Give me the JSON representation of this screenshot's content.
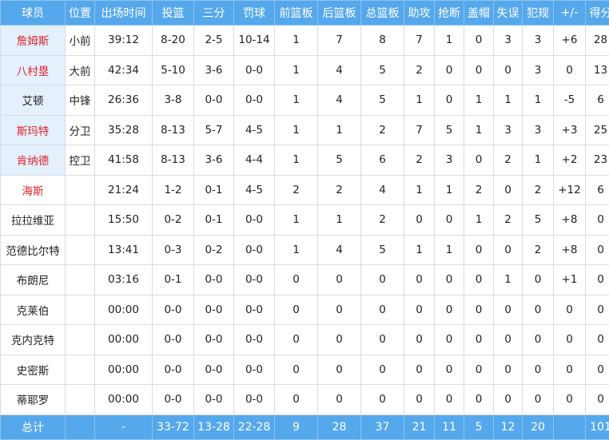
{
  "colors": {
    "header_bg": "#56a8ec",
    "starter_bg": "#e4f0fc",
    "highlight_name": "#e0242c"
  },
  "headers": [
    "球员",
    "位置",
    "出场时间",
    "投篮",
    "三分",
    "罚球",
    "前篮板",
    "后篮板",
    "总篮板",
    "助攻",
    "抢断",
    "盖帽",
    "失误",
    "犯规",
    "+/-",
    "得分"
  ],
  "players": [
    {
      "name": "詹姆斯",
      "red": true,
      "starter": true,
      "stats": [
        "小前",
        "39:12",
        "8-20",
        "2-5",
        "10-14",
        "1",
        "7",
        "8",
        "7",
        "1",
        "0",
        "3",
        "3",
        "+6",
        "28"
      ]
    },
    {
      "name": "八村塁",
      "red": true,
      "starter": true,
      "stats": [
        "大前",
        "42:34",
        "5-10",
        "3-6",
        "0-0",
        "1",
        "4",
        "5",
        "2",
        "0",
        "0",
        "0",
        "3",
        "0",
        "13"
      ]
    },
    {
      "name": "艾顿",
      "red": false,
      "starter": true,
      "stats": [
        "中锋",
        "26:36",
        "3-8",
        "0-0",
        "0-0",
        "1",
        "4",
        "5",
        "1",
        "0",
        "1",
        "1",
        "1",
        "-5",
        "6"
      ]
    },
    {
      "name": "斯玛特",
      "red": true,
      "starter": true,
      "stats": [
        "分卫",
        "35:28",
        "8-13",
        "5-7",
        "4-5",
        "1",
        "1",
        "2",
        "7",
        "5",
        "1",
        "3",
        "3",
        "+3",
        "25"
      ]
    },
    {
      "name": "肯纳德",
      "red": true,
      "starter": true,
      "stats": [
        "控卫",
        "41:58",
        "8-13",
        "3-6",
        "4-4",
        "1",
        "5",
        "6",
        "2",
        "3",
        "0",
        "2",
        "1",
        "+2",
        "23"
      ]
    },
    {
      "name": "海斯",
      "red": true,
      "starter": false,
      "stats": [
        "",
        "21:24",
        "1-2",
        "0-1",
        "4-5",
        "2",
        "2",
        "4",
        "1",
        "1",
        "2",
        "0",
        "2",
        "+12",
        "6"
      ]
    },
    {
      "name": "拉拉维亚",
      "red": false,
      "starter": false,
      "stats": [
        "",
        "15:50",
        "0-2",
        "0-1",
        "0-0",
        "1",
        "1",
        "2",
        "0",
        "0",
        "1",
        "2",
        "5",
        "+8",
        "0"
      ]
    },
    {
      "name": "范德比尔特",
      "red": false,
      "starter": false,
      "stats": [
        "",
        "13:41",
        "0-3",
        "0-2",
        "0-0",
        "1",
        "4",
        "5",
        "1",
        "1",
        "0",
        "0",
        "2",
        "+8",
        "0"
      ]
    },
    {
      "name": "布朗尼",
      "red": false,
      "starter": false,
      "stats": [
        "",
        "03:16",
        "0-1",
        "0-0",
        "0-0",
        "0",
        "0",
        "0",
        "0",
        "0",
        "0",
        "1",
        "0",
        "+1",
        "0"
      ]
    },
    {
      "name": "克莱伯",
      "red": false,
      "starter": false,
      "stats": [
        "",
        "00:00",
        "0-0",
        "0-0",
        "0-0",
        "0",
        "0",
        "0",
        "0",
        "0",
        "0",
        "0",
        "0",
        "0",
        "0"
      ]
    },
    {
      "name": "克内克特",
      "red": false,
      "starter": false,
      "stats": [
        "",
        "00:00",
        "0-0",
        "0-0",
        "0-0",
        "0",
        "0",
        "0",
        "0",
        "0",
        "0",
        "0",
        "0",
        "0",
        "0"
      ]
    },
    {
      "name": "史密斯",
      "red": false,
      "starter": false,
      "stats": [
        "",
        "00:00",
        "0-0",
        "0-0",
        "0-0",
        "0",
        "0",
        "0",
        "0",
        "0",
        "0",
        "0",
        "0",
        "0",
        "0"
      ]
    },
    {
      "name": "蒂耶罗",
      "red": false,
      "starter": false,
      "stats": [
        "",
        "00:00",
        "0-0",
        "0-0",
        "0-0",
        "0",
        "0",
        "0",
        "0",
        "0",
        "0",
        "0",
        "0",
        "0",
        "0"
      ]
    }
  ],
  "totals": [
    "总计",
    "",
    "-",
    "33-72",
    "13-28",
    "22-28",
    "9",
    "28",
    "37",
    "21",
    "11",
    "5",
    "12",
    "20",
    "",
    "101"
  ]
}
